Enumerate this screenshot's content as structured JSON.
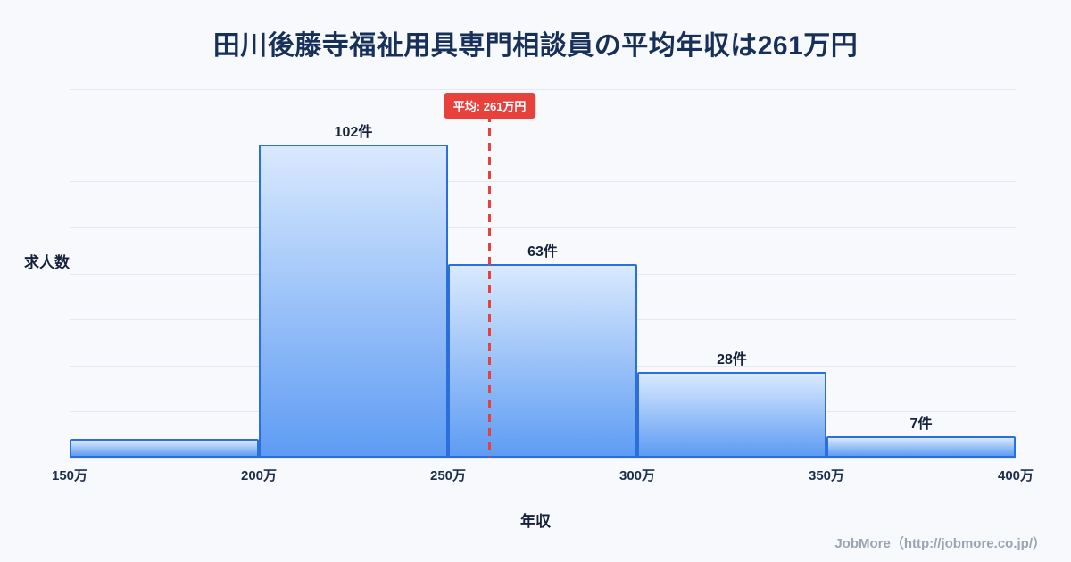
{
  "page": {
    "footer": "JobMore（http://jobmore.co.jp/）"
  },
  "chart_data": {
    "type": "bar",
    "title": "田川後藤寺福祉用具専門相談員の平均年収は261万円",
    "xlabel": "年収",
    "ylabel": "求人数",
    "x_range": [
      150,
      400
    ],
    "x_ticks": [
      "150万",
      "200万",
      "250万",
      "300万",
      "350万",
      "400万"
    ],
    "x_tick_values": [
      150,
      200,
      250,
      300,
      350,
      400
    ],
    "ylim": [
      0,
      120
    ],
    "grid": true,
    "legend": "none",
    "bins": [
      {
        "range": [
          150,
          200
        ],
        "count": 6,
        "label": ""
      },
      {
        "range": [
          200,
          250
        ],
        "count": 102,
        "label": "102件"
      },
      {
        "range": [
          250,
          300
        ],
        "count": 63,
        "label": "63件"
      },
      {
        "range": [
          300,
          350
        ],
        "count": 28,
        "label": "28件"
      },
      {
        "range": [
          350,
          400
        ],
        "count": 7,
        "label": "7件"
      }
    ],
    "average": {
      "value": 261,
      "label": "平均: 261万円"
    },
    "colors": {
      "bar_fill_top": "#d9e9fe",
      "bar_fill_bottom": "#5e9cf3",
      "bar_border": "#2b6fdd",
      "average_line": "#e8413c",
      "badge_bg": "#e8413c",
      "badge_text": "#ffffff",
      "title_text": "#17305a",
      "grid_line": "#e4e9f1",
      "background": "#f7f9fc",
      "footer_text": "#9aa4b2"
    }
  }
}
